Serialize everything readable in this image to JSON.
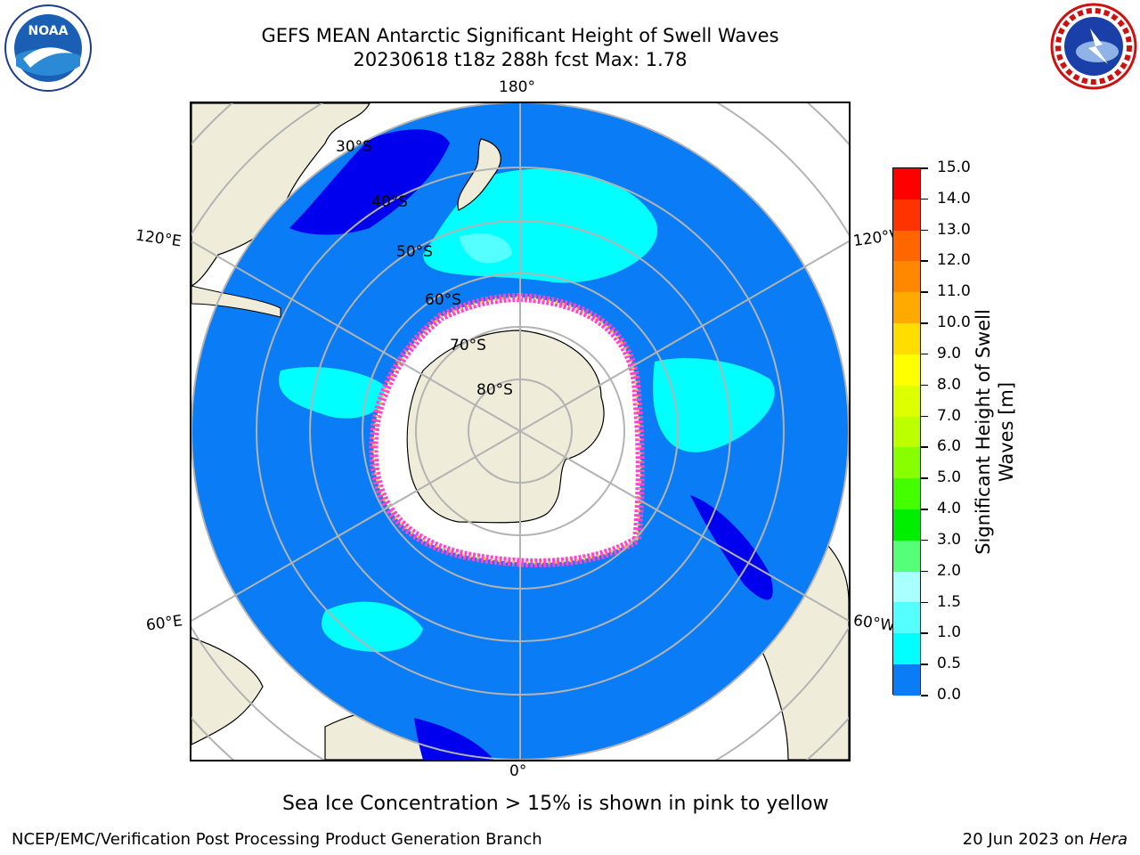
{
  "header": {
    "title_line1": "GEFS MEAN Antarctic Significant Height of Swell Waves",
    "title_line2": "20230618 t18z 288h fcst   Max: 1.78"
  },
  "map": {
    "longitude_labels": {
      "top": "180°",
      "bottom": "0°",
      "upper_left": "120°E",
      "upper_right": "120°W",
      "lower_left": "60°E",
      "lower_right": "60°W"
    },
    "latitude_labels": [
      "30°S",
      "40°S",
      "50°S",
      "60°S",
      "70°S",
      "80°S"
    ],
    "colors": {
      "ocean_main": "#0a7cf5",
      "ocean_low": "#0000ee",
      "swell_1_5": "#00ffff",
      "swell_2": "#55ffff",
      "land": "#efedd9",
      "sea_ice": "#ffffff",
      "ice_edge_pink": "#ff44cc",
      "ice_edge_yellow": "#ffcc33"
    }
  },
  "colorbar": {
    "label": "Significant Height of Swell Waves [m]",
    "label_line1": "Significant Height of Swell",
    "label_line2": "Waves [m]",
    "ticks": [
      "15.0",
      "14.0",
      "13.0",
      "12.0",
      "11.0",
      "10.0",
      "9.0",
      "8.0",
      "7.0",
      "6.0",
      "5.0",
      "4.0",
      "3.0",
      "2.0",
      "1.5",
      "1.0",
      "0.5",
      "0.0"
    ],
    "colors": [
      "#ff0000",
      "#ff3300",
      "#ff6600",
      "#ff8800",
      "#ffaa00",
      "#ffdd00",
      "#ffff00",
      "#ddff00",
      "#bbff00",
      "#88ff00",
      "#44ff00",
      "#00ee00",
      "#55ff77",
      "#aaffff",
      "#55ffff",
      "#00ffff",
      "#0a7cf5",
      "#0000ee"
    ]
  },
  "footer": {
    "note": "Sea Ice Concentration > 15% is shown in pink to yellow",
    "left": "NCEP/EMC/Verification Post Processing Product Generation Branch",
    "right_prefix": "20 Jun 2023 on ",
    "right_host": "Hera"
  }
}
